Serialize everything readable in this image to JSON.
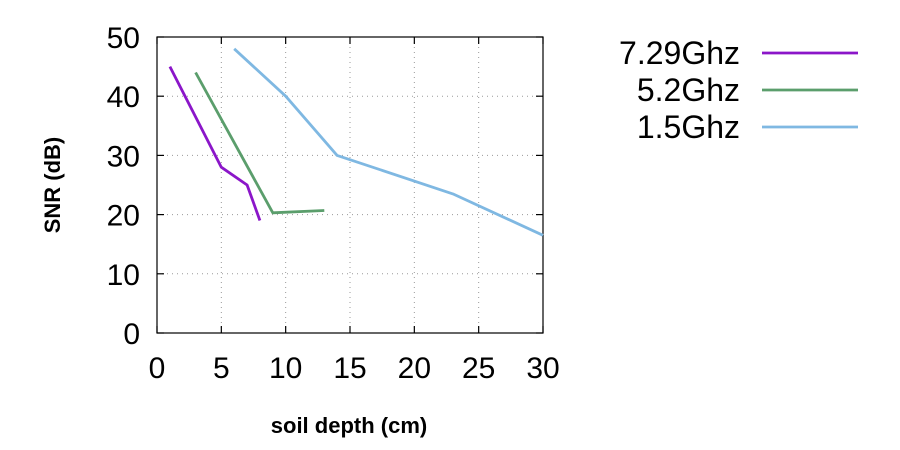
{
  "chart_data": {
    "type": "line",
    "title": "",
    "xlabel": "soil depth (cm)",
    "ylabel": "SNR (dB)",
    "xlim": [
      0,
      30
    ],
    "ylim": [
      0,
      50
    ],
    "xticks": [
      0,
      5,
      10,
      15,
      20,
      25,
      30
    ],
    "yticks": [
      0,
      10,
      20,
      30,
      40,
      50
    ],
    "grid": true,
    "legend_position": "right",
    "series": [
      {
        "name": "7.29Ghz",
        "color": "#8b16c9",
        "points": [
          [
            1,
            45
          ],
          [
            5,
            28
          ],
          [
            7,
            25
          ],
          [
            8,
            19
          ]
        ]
      },
      {
        "name": "5.2Ghz",
        "color": "#5b9e6c",
        "points": [
          [
            3,
            44
          ],
          [
            9,
            20.3
          ],
          [
            13,
            20.7
          ]
        ]
      },
      {
        "name": "1.5Ghz",
        "color": "#7fb8e2",
        "points": [
          [
            6,
            48
          ],
          [
            10,
            40
          ],
          [
            14,
            30
          ],
          [
            23,
            23.5
          ],
          [
            30,
            16.5
          ]
        ]
      }
    ]
  }
}
